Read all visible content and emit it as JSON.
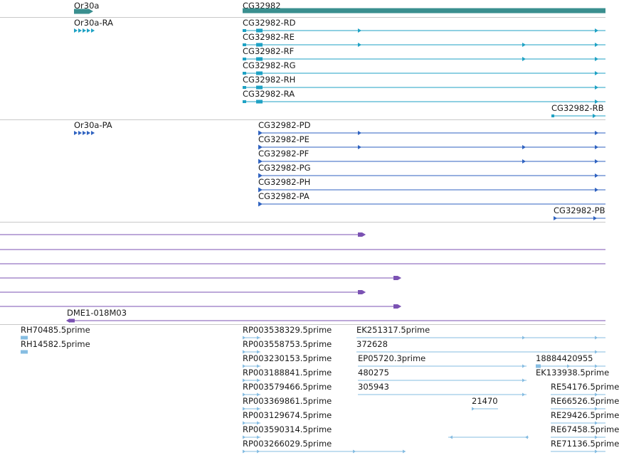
{
  "colors": {
    "gene": "#3a8f8f",
    "rna": "#1fa2c4",
    "protein": "#2f62c0",
    "purple": "#7b52b3",
    "est": "#86bde2"
  },
  "tracks": {
    "gene": {
      "labels": [
        "Or30a",
        "CG32982"
      ]
    },
    "transcripts": {
      "labels": [
        "Or30a-RA",
        "CG32982-RD",
        "CG32982-RE",
        "CG32982-RF",
        "CG32982-RG",
        "CG32982-RH",
        "CG32982-RA",
        "CG32982-RB"
      ]
    },
    "proteins": {
      "labels": [
        "Or30a-PA",
        "CG32982-PD",
        "CG32982-PE",
        "CG32982-PF",
        "CG32982-PG",
        "CG32982-PH",
        "CG32982-PA",
        "CG32982-PB"
      ]
    },
    "purple": {
      "labels": [
        "DME1-018M03"
      ]
    },
    "ests": {
      "labels": [
        "RH70485.5prime",
        "RH14582.5prime",
        "RP003538329.5prime",
        "RP003558753.5prime",
        "RP003230153.5prime",
        "RP003188841.5prime",
        "RP003579466.5prime",
        "RP003369861.5prime",
        "RP003129674.5prime",
        "RP003590314.5prime",
        "RP003266029.5prime",
        "EK251317.5prime",
        "372628",
        "EP05720.3prime",
        "480275",
        "305943",
        "21470",
        "18884420955",
        "EK133938.5prime",
        "RE54176.5prime",
        "RE66526.5prime",
        "RE29426.5prime",
        "RE67458.5prime",
        "RE71136.5prime"
      ]
    }
  }
}
